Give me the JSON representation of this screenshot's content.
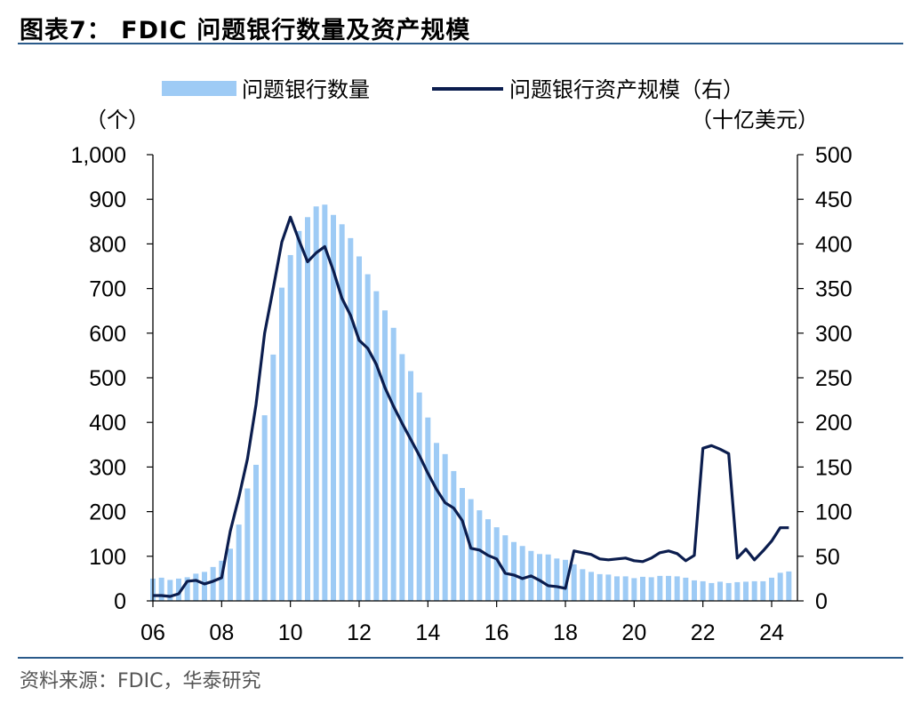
{
  "header": {
    "title": "图表7： FDIC 问题银行数量及资产规模"
  },
  "footer": {
    "source": "资料来源：FDIC，华泰研究"
  },
  "colors": {
    "bars": "#9ECBF5",
    "line": "#0B1D4E",
    "rule": "#2a5a8a"
  },
  "chart_data": {
    "type": "bar+line",
    "legend_position": "top",
    "grid": false,
    "left_axis": {
      "unit": "（个）",
      "ylim": [
        0,
        1000
      ],
      "ticks": [
        "0",
        "100",
        "200",
        "300",
        "400",
        "500",
        "600",
        "700",
        "800",
        "900",
        "1,000"
      ]
    },
    "right_axis": {
      "unit": "（十亿美元）",
      "ylim": [
        0,
        500
      ],
      "ticks": [
        "0",
        "50",
        "100",
        "150",
        "200",
        "250",
        "300",
        "350",
        "400",
        "450",
        "500"
      ]
    },
    "x_axis": {
      "range": [
        2006,
        2024.75
      ],
      "ticks": [
        "06",
        "08",
        "10",
        "12",
        "14",
        "16",
        "18",
        "20",
        "22",
        "24"
      ]
    },
    "x": [
      2006.0,
      2006.25,
      2006.5,
      2006.75,
      2007.0,
      2007.25,
      2007.5,
      2007.75,
      2008.0,
      2008.25,
      2008.5,
      2008.75,
      2009.0,
      2009.25,
      2009.5,
      2009.75,
      2010.0,
      2010.25,
      2010.5,
      2010.75,
      2011.0,
      2011.25,
      2011.5,
      2011.75,
      2012.0,
      2012.25,
      2012.5,
      2012.75,
      2013.0,
      2013.25,
      2013.5,
      2013.75,
      2014.0,
      2014.25,
      2014.5,
      2014.75,
      2015.0,
      2015.25,
      2015.5,
      2015.75,
      2016.0,
      2016.25,
      2016.5,
      2016.75,
      2017.0,
      2017.25,
      2017.5,
      2017.75,
      2018.0,
      2018.25,
      2018.5,
      2018.75,
      2019.0,
      2019.25,
      2019.5,
      2019.75,
      2020.0,
      2020.25,
      2020.5,
      2020.75,
      2021.0,
      2021.25,
      2021.5,
      2021.75,
      2022.0,
      2022.25,
      2022.5,
      2022.75,
      2023.0,
      2023.25,
      2023.5,
      2023.75,
      2024.0,
      2024.25,
      2024.5
    ],
    "series": [
      {
        "name": "问题银行数量",
        "kind": "bar",
        "axis": "left",
        "values": [
          50,
          52,
          47,
          50,
          53,
          61,
          65,
          76,
          90,
          117,
          171,
          252,
          305,
          416,
          552,
          702,
          775,
          829,
          860,
          884,
          888,
          865,
          844,
          813,
          772,
          732,
          694,
          651,
          612,
          553,
          515,
          467,
          411,
          354,
          329,
          291,
          253,
          228,
          203,
          183,
          165,
          147,
          132,
          123,
          112,
          105,
          104,
          95,
          92,
          82,
          71,
          65,
          60,
          59,
          55,
          55,
          51,
          54,
          53,
          56,
          56,
          55,
          52,
          46,
          44,
          40,
          43,
          40,
          42,
          43,
          44,
          44,
          52,
          63,
          66
        ]
      },
      {
        "name": "问题银行资产规模（右）",
        "kind": "line",
        "axis": "right",
        "values": [
          6,
          6,
          5,
          8,
          22,
          23,
          19,
          22,
          26,
          78,
          116,
          159,
          220,
          300,
          350,
          402,
          430,
          404,
          380,
          390,
          397,
          370,
          339,
          320,
          292,
          283,
          265,
          239,
          218,
          199,
          181,
          163,
          143,
          125,
          110,
          104,
          90,
          59,
          57,
          51,
          47,
          31,
          29,
          25,
          28,
          23,
          17,
          16,
          14,
          56,
          54,
          52,
          47,
          46,
          47,
          48,
          45,
          44,
          48,
          54,
          56,
          53,
          45,
          51,
          171,
          174,
          170,
          165,
          48,
          58,
          46,
          56,
          67,
          82,
          82
        ]
      }
    ]
  }
}
